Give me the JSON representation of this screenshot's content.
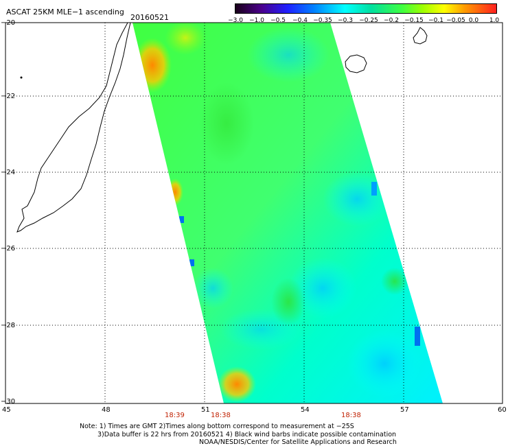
{
  "title": "ASCAT 25KM MLE−1 ascending",
  "date": "20160521",
  "colorbar": {
    "labels": [
      "−3.0",
      "−1.0",
      "−0.5",
      "−0.4",
      "−0.35",
      "−0.3",
      "−0.25",
      "−0.2",
      "−0.15",
      "−0.1",
      "−0.05",
      "0.0",
      "1.0"
    ]
  },
  "axes": {
    "lat_labels": [
      "−20",
      "−22",
      "−24",
      "−26",
      "−28",
      "−30"
    ],
    "lon_labels": [
      "45",
      "48",
      "51",
      "54",
      "57",
      "60"
    ]
  },
  "time_labels": [
    "18:39",
    "18:38",
    "18:38"
  ],
  "notes": [
    "Note: 1) Times are GMT 2)Times along bottom correspond to measurement at −25S",
    "3)Data buffer is 22 hrs from 20160521 4) Black wind barbs indicate possible contamination",
    "NOAA/NESDIS/Center for Satellite Applications and Research"
  ]
}
